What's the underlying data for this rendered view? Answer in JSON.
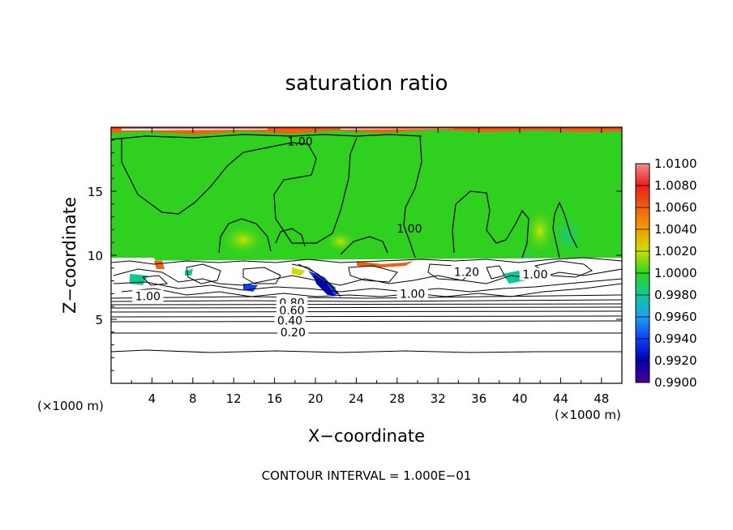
{
  "chart_data": {
    "type": "heatmap",
    "title": "saturation ratio",
    "xlabel": "X−coordinate",
    "ylabel": "Z−coordinate",
    "x_unit_note": "(×1000 m)",
    "x_unit_note_right": "(×1000 m)",
    "footer": "CONTOUR INTERVAL = 1.000E−01",
    "xlim": [
      0,
      50
    ],
    "ylim": [
      0,
      20
    ],
    "x_ticks": [
      4,
      8,
      12,
      16,
      20,
      24,
      28,
      32,
      36,
      40,
      44,
      48
    ],
    "y_ticks": [
      5,
      10,
      15
    ],
    "colorbar": {
      "levels": [
        "1.0100",
        "1.0080",
        "1.0060",
        "1.0040",
        "1.0020",
        "1.0000",
        "0.9980",
        "0.9960",
        "0.9940",
        "0.9920",
        "0.9900"
      ],
      "colors": [
        "#f08c8c",
        "#ee1c1c",
        "#f06010",
        "#f0a000",
        "#c8e000",
        "#2fd020",
        "#10c896",
        "#1ca0f0",
        "#1040f0",
        "#0000b0",
        "#4a0090"
      ]
    },
    "contour_labels": [
      {
        "text": "1.00",
        "x": 18.5,
        "z": 18.9
      },
      {
        "text": "1.00",
        "x": 29.2,
        "z": 12.1
      },
      {
        "text": "1.20",
        "x": 34.8,
        "z": 8.7
      },
      {
        "text": "1.00",
        "x": 41.5,
        "z": 8.5
      },
      {
        "text": "1.00",
        "x": 3.6,
        "z": 6.8
      },
      {
        "text": "1.00",
        "x": 29.5,
        "z": 7.0
      },
      {
        "text": "0.80",
        "x": 17.7,
        "z": 6.3
      },
      {
        "text": "0.60",
        "x": 17.7,
        "z": 5.7
      },
      {
        "text": "0.40",
        "x": 17.5,
        "z": 4.9
      },
      {
        "text": "0.20",
        "x": 17.8,
        "z": 4.0
      }
    ]
  }
}
